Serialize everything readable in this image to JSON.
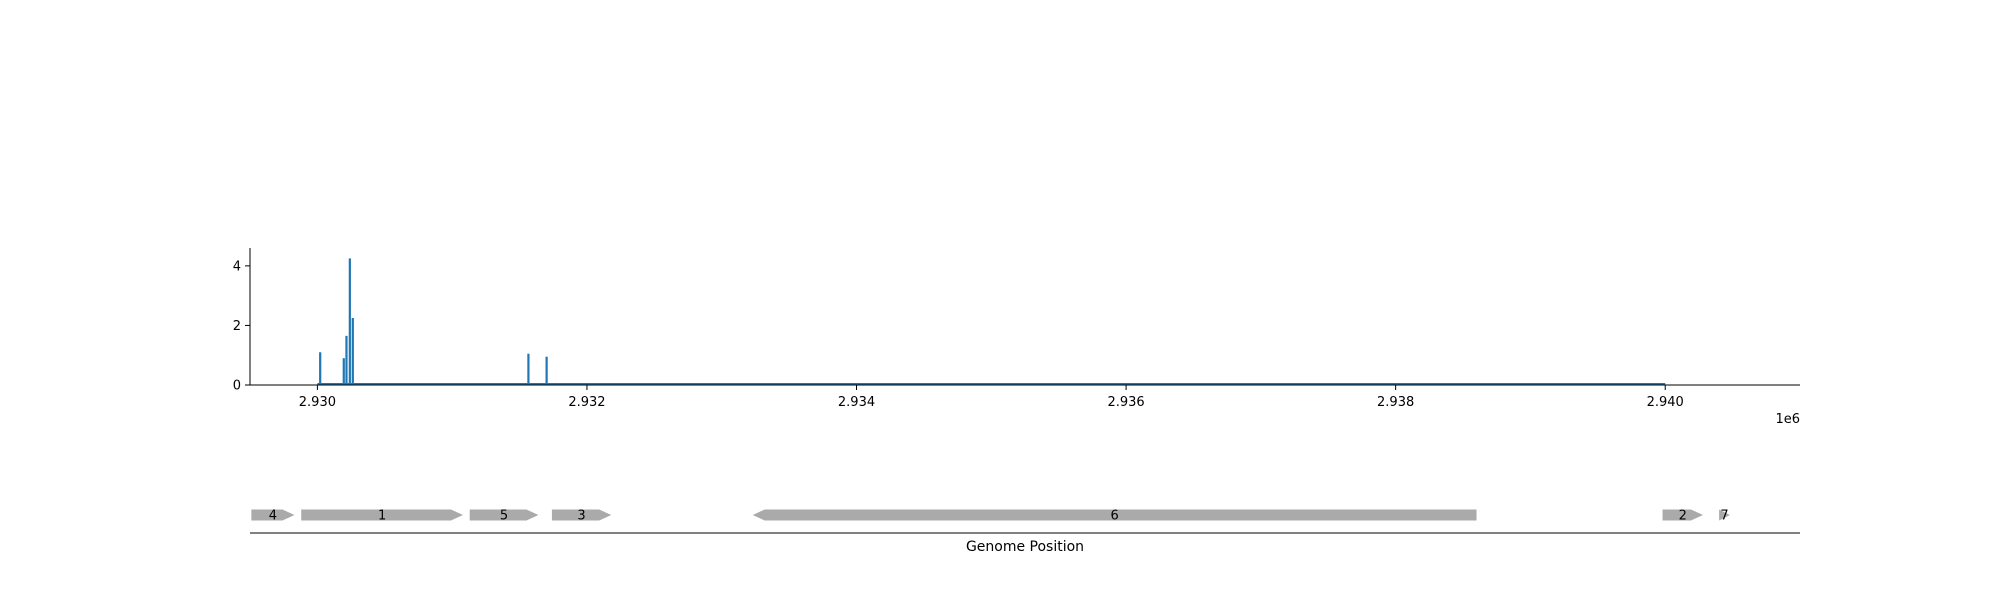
{
  "chart_data": [
    {
      "type": "bar",
      "title": "",
      "xlabel": "",
      "ylabel": "",
      "x_offset_label": "1e6",
      "xlim": [
        2929500,
        2941000
      ],
      "ylim": [
        0,
        4.6
      ],
      "x_ticks": [
        2930000,
        2932000,
        2934000,
        2936000,
        2938000,
        2940000
      ],
      "x_tick_labels": [
        "2.930",
        "2.932",
        "2.934",
        "2.936",
        "2.938",
        "2.940"
      ],
      "y_ticks": [
        0,
        2,
        4
      ],
      "y_tick_labels": [
        "0",
        "2",
        "4"
      ],
      "baseline_range": [
        2930000,
        2940000
      ],
      "bar_color": "#1f77b4",
      "points": [
        {
          "x": 2930020,
          "y": 1.1
        },
        {
          "x": 2930195,
          "y": 0.9
        },
        {
          "x": 2930215,
          "y": 1.65
        },
        {
          "x": 2930240,
          "y": 4.25
        },
        {
          "x": 2930262,
          "y": 2.25
        },
        {
          "x": 2931565,
          "y": 1.05
        },
        {
          "x": 2931700,
          "y": 0.95
        }
      ],
      "grid": false
    },
    {
      "type": "gene-track",
      "xlabel": "Genome Position",
      "xlim": [
        2929500,
        2941000
      ],
      "gene_color": "#aaaaaa",
      "genes": [
        {
          "label": "4",
          "start": 2929510,
          "end": 2929830,
          "strand": "+"
        },
        {
          "label": "1",
          "start": 2929880,
          "end": 2931080,
          "strand": "+"
        },
        {
          "label": "5",
          "start": 2931130,
          "end": 2931640,
          "strand": "+"
        },
        {
          "label": "3",
          "start": 2931740,
          "end": 2932180,
          "strand": "+"
        },
        {
          "label": "6",
          "start": 2933230,
          "end": 2938600,
          "strand": "-"
        },
        {
          "label": "2",
          "start": 2939980,
          "end": 2940280,
          "strand": "+"
        },
        {
          "label": "7",
          "start": 2940400,
          "end": 2940480,
          "strand": "+"
        }
      ]
    }
  ]
}
